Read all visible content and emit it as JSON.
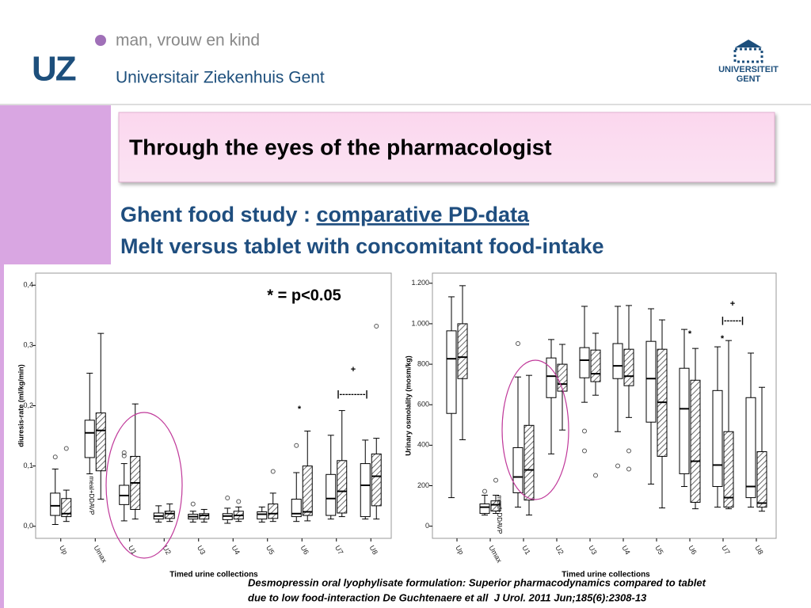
{
  "header": {
    "logo": "UZ",
    "tagline": "man, vrouw en kind",
    "hospital": "Universitair Ziekenhuis Gent",
    "university": [
      "UNIVERSITEIT",
      "GENT"
    ]
  },
  "title": "Through the eyes of the pharmacologist",
  "subtitle": {
    "prefix": "Ghent food study : ",
    "link": "comparative PD-data",
    "line2": "Melt versus tablet with concomitant food-intake"
  },
  "citation": [
    "Desmopressin oral lyophylisate formulation: Superior pharmacodynamics compared to tablet",
    "due to low food-interaction De Guchtenaere et all  J Urol. 2011 Jun;185(6):2308-13"
  ],
  "chart_data": [
    {
      "type": "box",
      "ylabel": "diuresis-rate (ml/kg/min)",
      "xlabel": "Timed urine collections",
      "vertical_label": "meal+DDAVP",
      "note": "* = p<0.05",
      "annotations": [
        "+",
        "|---------|",
        "*"
      ],
      "categories": [
        "Up",
        "Umax",
        "U1",
        "U2",
        "U3",
        "U4",
        "U5",
        "U6",
        "U7",
        "U8"
      ],
      "ylim": [
        -0.02,
        0.42
      ],
      "yticks": [
        {
          "value": 0,
          "label": "0,0"
        },
        {
          "value": 0.1,
          "label": "0,1"
        },
        {
          "value": 0.2,
          "label": "0,2"
        },
        {
          "value": 0.3,
          "label": "0,3"
        },
        {
          "value": 0.4,
          "label": "0,4"
        }
      ],
      "series": [
        {
          "color": "#ffffff",
          "hatched": false,
          "min": [
            0.003,
            0.087,
            0.009,
            0.007,
            0.007,
            0.005,
            0.007,
            0.008,
            0.012,
            0.012
          ],
          "q1": [
            0.018,
            0.114,
            0.036,
            0.012,
            0.012,
            0.011,
            0.012,
            0.016,
            0.018,
            0.016
          ],
          "median": [
            0.034,
            0.155,
            0.051,
            0.017,
            0.016,
            0.017,
            0.02,
            0.021,
            0.046,
            0.068
          ],
          "q3": [
            0.055,
            0.176,
            0.068,
            0.022,
            0.02,
            0.021,
            0.024,
            0.045,
            0.086,
            0.104
          ],
          "max": [
            0.095,
            0.254,
            0.104,
            0.034,
            0.025,
            0.03,
            0.032,
            0.089,
            0.151,
            0.143
          ],
          "outliers": [
            [
              0.115
            ],
            [],
            [
              0.122,
              0.117
            ],
            [],
            [
              0.037
            ],
            [
              0.047
            ],
            [],
            [
              0.134
            ],
            [],
            []
          ]
        },
        {
          "color": "#ffffff",
          "hatched": true,
          "min": [
            0.008,
            0.045,
            0.012,
            0.008,
            0.007,
            0.008,
            0.008,
            0.009,
            0.016,
            0.012
          ],
          "q1": [
            0.016,
            0.092,
            0.028,
            0.013,
            0.012,
            0.012,
            0.013,
            0.018,
            0.022,
            0.034
          ],
          "median": [
            0.021,
            0.159,
            0.072,
            0.021,
            0.018,
            0.018,
            0.021,
            0.024,
            0.058,
            0.083
          ],
          "q3": [
            0.046,
            0.188,
            0.116,
            0.025,
            0.021,
            0.025,
            0.037,
            0.1,
            0.109,
            0.12
          ],
          "max": [
            0.06,
            0.32,
            0.203,
            0.037,
            0.028,
            0.032,
            0.055,
            0.158,
            0.192,
            0.146
          ],
          "outliers": [
            [
              0.129
            ],
            [],
            [],
            [],
            [],
            [
              0.041
            ],
            [
              0.091
            ],
            [],
            [],
            [
              0.332
            ]
          ]
        }
      ]
    },
    {
      "type": "box",
      "ylabel": "Urinary osmolality (mosm/kg)",
      "xlabel": "Timed urine collections",
      "vertical_label": "meal+DDAVP",
      "annotations": [
        "+",
        "|------|",
        "*",
        "*"
      ],
      "categories": [
        "Up",
        "Umax",
        "U1",
        "U2",
        "U3",
        "U4",
        "U5",
        "U6",
        "U7",
        "U8"
      ],
      "ylim": [
        -60,
        1250
      ],
      "yticks": [
        0,
        200,
        400,
        600,
        800,
        {
          "value": 1000,
          "label": "1.000"
        },
        {
          "value": 1200,
          "label": "1.200"
        }
      ],
      "series": [
        {
          "color": "#ffffff",
          "hatched": false,
          "min": [
            141,
            55,
            94,
            357,
            612,
            467,
            208,
            196,
            94,
            94
          ],
          "q1": [
            557,
            63,
            165,
            635,
            733,
            729,
            514,
            259,
            196,
            141
          ],
          "median": [
            827,
            94,
            243,
            741,
            820,
            792,
            729,
            580,
            302,
            196
          ],
          "q3": [
            965,
            110,
            388,
            831,
            882,
            902,
            913,
            780,
            670,
            635
          ],
          "max": [
            1133,
            153,
            737,
            922,
            1086,
            1086,
            1074,
            972,
            886,
            855
          ],
          "outliers": [
            [],
            [
              172
            ],
            [
              902
            ],
            [],
            [
              470,
              372
            ],
            [
              298
            ],
            [],
            [],
            [],
            []
          ]
        },
        {
          "color": "#ffffff",
          "hatched": true,
          "min": [
            427,
            63,
            55,
            475,
            647,
            537,
            90,
            86,
            86,
            74
          ],
          "q1": [
            729,
            75,
            129,
            667,
            714,
            694,
            345,
            118,
            94,
            94
          ],
          "median": [
            835,
            106,
            278,
            702,
            753,
            741,
            612,
            321,
            141,
            114
          ],
          "q3": [
            1000,
            125,
            498,
            800,
            870,
            874,
            874,
            721,
            467,
            368
          ],
          "max": [
            1188,
            153,
            745,
            898,
            953,
            1090,
            1019,
            878,
            917,
            686
          ],
          "outliers": [
            [],
            [
              227
            ],
            [],
            [],
            [
              251
            ],
            [
              372,
              282
            ],
            [],
            [],
            [],
            []
          ]
        }
      ]
    }
  ]
}
